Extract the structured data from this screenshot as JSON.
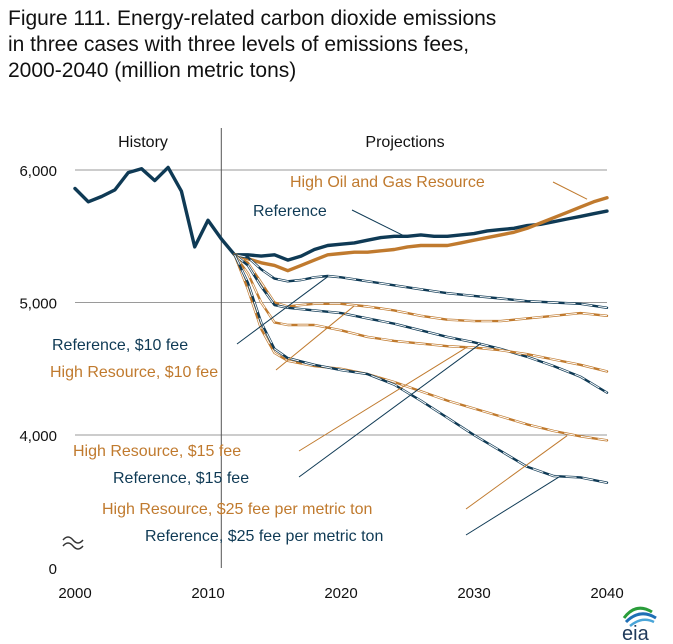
{
  "title_lines": [
    "Figure 111. Energy-related carbon dioxide emissions",
    "in three cases with three levels of emissions fees,",
    "2000-2040 (million metric tons)"
  ],
  "logo_text": "eia",
  "colors": {
    "reference": "#0f3a55",
    "high_resource": "#c07a2e",
    "grid": "#9a9a9a",
    "divider": "#555555"
  },
  "chart_data": {
    "type": "line",
    "title": "Figure 111. Energy-related carbon dioxide emissions in three cases with three levels of emissions fees, 2000-2040 (million metric tons)",
    "xlim": [
      2000,
      2040
    ],
    "ylim": [
      0,
      6000
    ],
    "axis_break": true,
    "x_ticks": [
      "2000",
      "2010",
      "2020",
      "2030",
      "2040"
    ],
    "y_ticks": [
      "0",
      "4,000",
      "5,000",
      "6,000"
    ],
    "regions": {
      "history": "History",
      "projections": "Projections",
      "divider_year": 2011
    },
    "grid": true,
    "series": [
      {
        "name": "Reference",
        "color": "#0f3a55",
        "style": "solid",
        "x": [
          2000,
          2001,
          2002,
          2003,
          2004,
          2005,
          2006,
          2007,
          2008,
          2009,
          2010,
          2011,
          2012,
          2013,
          2014,
          2015,
          2016,
          2017,
          2018,
          2019,
          2020,
          2021,
          2022,
          2023,
          2024,
          2025,
          2026,
          2027,
          2028,
          2029,
          2030,
          2031,
          2032,
          2033,
          2034,
          2035,
          2036,
          2037,
          2038,
          2039,
          2040
        ],
        "y": [
          5860,
          5760,
          5800,
          5850,
          5980,
          6010,
          5920,
          6020,
          5840,
          5420,
          5620,
          5480,
          5360,
          5360,
          5350,
          5360,
          5320,
          5350,
          5400,
          5430,
          5440,
          5450,
          5470,
          5490,
          5500,
          5500,
          5510,
          5500,
          5500,
          5510,
          5520,
          5540,
          5550,
          5560,
          5580,
          5590,
          5610,
          5630,
          5650,
          5670,
          5690
        ]
      },
      {
        "name": "High Oil and Gas Resource",
        "color": "#c07a2e",
        "style": "solid",
        "x": [
          2012,
          2013,
          2014,
          2015,
          2016,
          2017,
          2018,
          2019,
          2020,
          2021,
          2022,
          2023,
          2024,
          2025,
          2026,
          2027,
          2028,
          2029,
          2030,
          2031,
          2032,
          2033,
          2034,
          2035,
          2036,
          2037,
          2038,
          2039,
          2040
        ],
        "y": [
          5360,
          5330,
          5300,
          5280,
          5240,
          5280,
          5320,
          5360,
          5370,
          5380,
          5380,
          5390,
          5400,
          5420,
          5430,
          5430,
          5430,
          5450,
          5470,
          5490,
          5510,
          5530,
          5560,
          5600,
          5640,
          5680,
          5720,
          5760,
          5790
        ]
      },
      {
        "name": "Reference, $10 fee",
        "color": "#0f3a55",
        "style": "dashed",
        "x": [
          2012,
          2013,
          2014,
          2015,
          2016,
          2017,
          2018,
          2019,
          2020,
          2022,
          2024,
          2026,
          2028,
          2030,
          2032,
          2034,
          2036,
          2038,
          2040
        ],
        "y": [
          5360,
          5340,
          5250,
          5180,
          5160,
          5170,
          5190,
          5200,
          5190,
          5160,
          5130,
          5100,
          5070,
          5050,
          5030,
          5010,
          5000,
          4990,
          4960
        ]
      },
      {
        "name": "High Resource, $10 fee",
        "color": "#c07a2e",
        "style": "dashed",
        "x": [
          2012,
          2013,
          2014,
          2015,
          2016,
          2017,
          2018,
          2019,
          2020,
          2022,
          2024,
          2026,
          2028,
          2030,
          2032,
          2034,
          2036,
          2038,
          2040
        ],
        "y": [
          5360,
          5300,
          5150,
          5000,
          4970,
          4980,
          4990,
          4990,
          4990,
          4970,
          4940,
          4900,
          4870,
          4860,
          4860,
          4880,
          4900,
          4920,
          4900
        ]
      },
      {
        "name": "Reference, $15 fee",
        "color": "#0f3a55",
        "style": "dashed",
        "x": [
          2012,
          2013,
          2014,
          2015,
          2016,
          2018,
          2020,
          2022,
          2024,
          2026,
          2028,
          2030,
          2032,
          2034,
          2036,
          2038,
          2040
        ],
        "y": [
          5360,
          5280,
          5120,
          4980,
          4960,
          4940,
          4920,
          4880,
          4840,
          4790,
          4740,
          4700,
          4650,
          4590,
          4520,
          4440,
          4320
        ]
      },
      {
        "name": "High Resource, $15 fee",
        "color": "#c07a2e",
        "style": "dashed",
        "x": [
          2012,
          2013,
          2014,
          2015,
          2016,
          2018,
          2020,
          2022,
          2024,
          2026,
          2028,
          2030,
          2032,
          2034,
          2036,
          2038,
          2040
        ],
        "y": [
          5360,
          5220,
          5000,
          4850,
          4830,
          4830,
          4790,
          4740,
          4710,
          4690,
          4670,
          4660,
          4640,
          4610,
          4570,
          4530,
          4480
        ]
      },
      {
        "name": "High Resource, $25 fee per metric ton",
        "color": "#c07a2e",
        "style": "dashed",
        "x": [
          2012,
          2013,
          2014,
          2015,
          2016,
          2018,
          2020,
          2022,
          2024,
          2026,
          2028,
          2030,
          2032,
          2034,
          2036,
          2038,
          2040
        ],
        "y": [
          5360,
          5100,
          4800,
          4620,
          4560,
          4520,
          4500,
          4460,
          4400,
          4330,
          4260,
          4200,
          4140,
          4080,
          4030,
          3990,
          3960
        ]
      },
      {
        "name": "Reference, $25 fee per metric ton",
        "color": "#0f3a55",
        "style": "dashed",
        "x": [
          2012,
          2013,
          2014,
          2015,
          2016,
          2018,
          2020,
          2022,
          2024,
          2026,
          2028,
          2030,
          2032,
          2034,
          2036,
          2038,
          2040
        ],
        "y": [
          5360,
          5150,
          4850,
          4650,
          4580,
          4530,
          4490,
          4460,
          4380,
          4260,
          4130,
          4000,
          3880,
          3760,
          3690,
          3680,
          3640
        ]
      }
    ],
    "labels": [
      {
        "text": "High Oil and Gas Resource",
        "color": "#c07a2e",
        "target": [
          2038.5,
          5780
        ]
      },
      {
        "text": "Reference",
        "color": "#0f3a55",
        "target": [
          2025,
          5490
        ]
      },
      {
        "text": "Reference, $10 fee",
        "color": "#0f3a55",
        "target": [
          2019,
          5195
        ]
      },
      {
        "text": "High Resource, $10 fee",
        "color": "#c07a2e",
        "target": [
          2021,
          4975
        ]
      },
      {
        "text": "High Resource, $15 fee",
        "color": "#c07a2e",
        "target": [
          2029.5,
          4665
        ]
      },
      {
        "text": "Reference, $15 fee",
        "color": "#0f3a55",
        "target": [
          2030.5,
          4690
        ]
      },
      {
        "text": "High Resource, $25 fee per metric ton",
        "color": "#c07a2e",
        "target": [
          2037,
          3995
        ]
      },
      {
        "text": "Reference, $25 fee per metric ton",
        "color": "#0f3a55",
        "target": [
          2036.5,
          3690
        ]
      }
    ]
  }
}
